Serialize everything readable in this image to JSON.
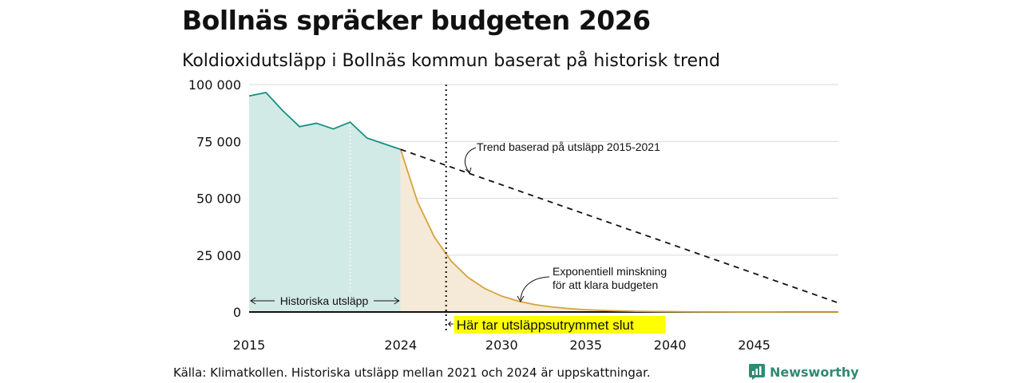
{
  "title": "Bollnäs spräcker budgeten 2026",
  "subtitle": "Koldioxidutsläpp i Bollnäs kommun baserat på historisk trend",
  "source": "Källa: Klimatkollen. Historiska utsläpp mellan 2021 och 2024 är uppskattningar.",
  "brand": "Newsworthy",
  "colors": {
    "historical": "#16907f",
    "historical_fill": "#d2eae6",
    "budget": "#d4a43c",
    "budget_fill": "#f5e9d7",
    "grid": "#d9d9d9",
    "highlight": "#ffff00"
  },
  "chart_data": {
    "type": "area",
    "title": "Bollnäs spräcker budgeten 2026",
    "subtitle": "Koldioxidutsläpp i Bollnäs kommun baserat på historisk trend",
    "xlabel": "",
    "ylabel": "",
    "xlim": [
      2015,
      2050
    ],
    "ylim": [
      0,
      100000
    ],
    "y_ticks": [
      0,
      25000,
      50000,
      75000,
      100000
    ],
    "y_tick_labels": [
      "0",
      "25 000",
      "50 000",
      "75 000",
      "100 000"
    ],
    "x_ticks": [
      2015,
      2024,
      2030,
      2035,
      2040,
      2045
    ],
    "x_tick_labels": [
      "2015",
      "2024",
      "2030",
      "2035",
      "2040",
      "2045"
    ],
    "series": [
      {
        "name": "Historiska utsläpp",
        "x": [
          2015,
          2016,
          2017,
          2018,
          2019,
          2020,
          2021,
          2022,
          2023,
          2024
        ],
        "values": [
          95000,
          96500,
          88500,
          81500,
          83000,
          80500,
          83500,
          76500,
          74000,
          71500
        ]
      },
      {
        "name": "Exponentiell minskning för att klara budgeten",
        "x": [
          2024,
          2025,
          2026,
          2027,
          2028,
          2029,
          2030,
          2031,
          2032,
          2033,
          2034,
          2035,
          2036,
          2037,
          2038,
          2039,
          2040,
          2041,
          2042,
          2043,
          2044,
          2045,
          2046,
          2047,
          2048,
          2049,
          2050
        ],
        "values": [
          71500,
          48500,
          33000,
          22400,
          15200,
          10300,
          7000,
          4750,
          3200,
          2200,
          1500,
          1000,
          690,
          470,
          320,
          215,
          145,
          100,
          70,
          45,
          30,
          20,
          15,
          10,
          7,
          5,
          3
        ]
      },
      {
        "name": "Trend baserad på utsläpp 2015-2021",
        "x": [
          2024,
          2050
        ],
        "values": [
          71500,
          4000
        ]
      }
    ],
    "annotations": {
      "trend_label": "Trend baserad på utsläpp 2015-2021",
      "decline_line1": "Exponentiell minskning",
      "decline_line2": "för att klara budgeten",
      "historical_label": "Historiska utsläpp",
      "budget_end_label": "Här tar utsläppsutrymmet slut",
      "budget_end_year": 2026.7,
      "marker_year": 2021
    }
  }
}
